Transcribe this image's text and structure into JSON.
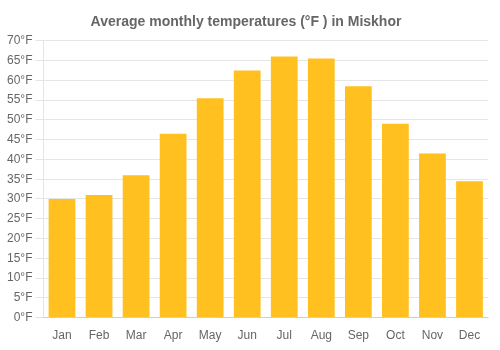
{
  "chart_data": {
    "type": "bar",
    "title": "Average monthly temperatures (°F ) in Miskhor",
    "categories": [
      "Jan",
      "Feb",
      "Mar",
      "Apr",
      "May",
      "Jun",
      "Jul",
      "Aug",
      "Sep",
      "Oct",
      "Nov",
      "Dec"
    ],
    "values": [
      30,
      31,
      36,
      46.5,
      55.5,
      62.5,
      66,
      65.5,
      58.5,
      49,
      41.5,
      34.5
    ],
    "color": "#FFC020",
    "ylim": [
      0,
      70
    ],
    "yticks": [
      {
        "value": 0,
        "label": "0°F"
      },
      {
        "value": 5,
        "label": "5°F"
      },
      {
        "value": 10,
        "label": "10°F"
      },
      {
        "value": 15,
        "label": "15°F"
      },
      {
        "value": 20,
        "label": "20°F"
      },
      {
        "value": 25,
        "label": "25°F"
      },
      {
        "value": 30,
        "label": "30°F"
      },
      {
        "value": 35,
        "label": "35°F"
      },
      {
        "value": 40,
        "label": "40°F"
      },
      {
        "value": 45,
        "label": "45°F"
      },
      {
        "value": 50,
        "label": "50°F"
      },
      {
        "value": 55,
        "label": "55°F"
      },
      {
        "value": 60,
        "label": "60°F"
      },
      {
        "value": 65,
        "label": "65°F"
      },
      {
        "value": 70,
        "label": "70°F"
      }
    ],
    "grid": true
  }
}
